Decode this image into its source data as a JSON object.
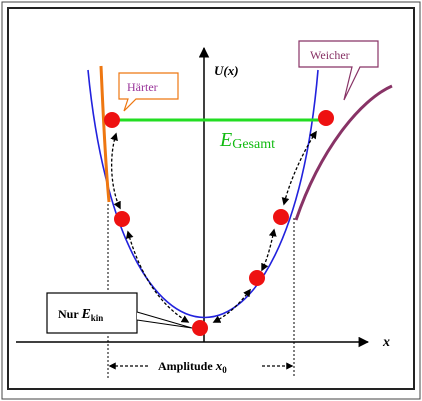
{
  "labels": {
    "y_axis": "U(x)",
    "x_axis": "x",
    "total_energy_main": "E",
    "total_energy_sub": "Gesamt",
    "harder": "Härter",
    "softer": "Weicher",
    "kinetic_prefix": "Nur ",
    "kinetic_main": "E",
    "kinetic_sub": "kin",
    "amplitude_prefix": "Amplitude ",
    "amplitude_main": "x",
    "amplitude_sub": "0"
  },
  "colors": {
    "parabola": "#2222dd",
    "harder_curve": "#ee7711",
    "softer_curve": "#883366",
    "energy_line": "#22dd22",
    "energy_text": "#11bb11",
    "ball": "#ee1111",
    "harder_label": "#993399",
    "softer_label": "#883366",
    "axis": "#000000"
  }
}
